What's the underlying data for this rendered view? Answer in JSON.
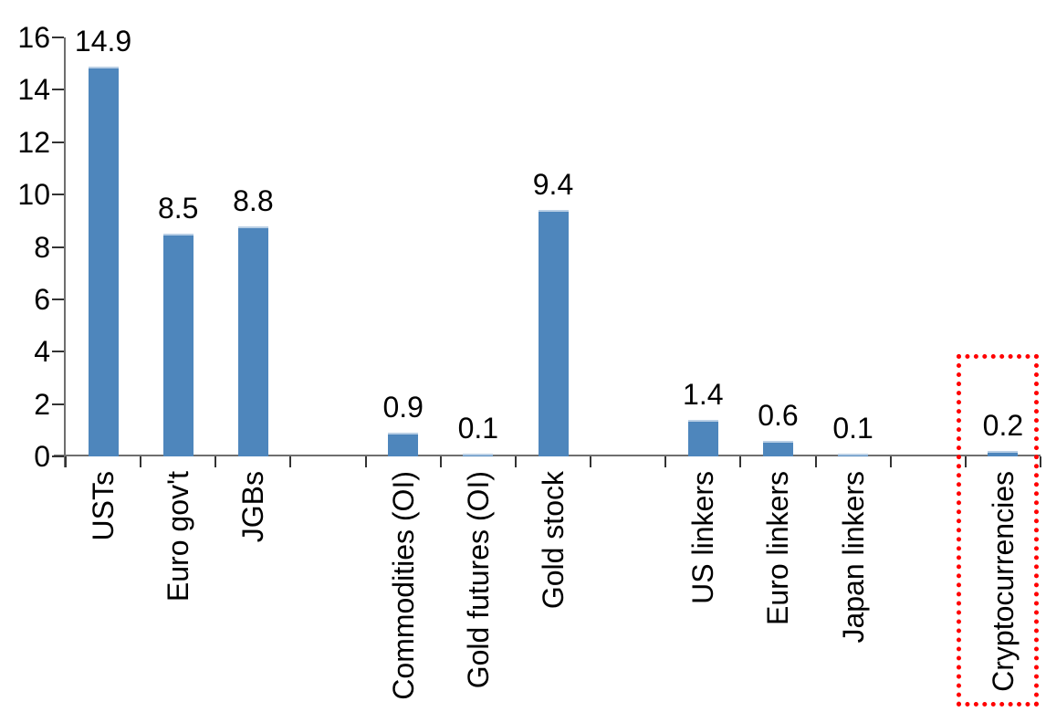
{
  "chart_data": {
    "type": "bar",
    "categories": [
      "USTs",
      "Euro gov't",
      "JGBs",
      "Commodities (OI)",
      "Gold futures (OI)",
      "Gold stock",
      "US linkers",
      "Euro linkers",
      "Japan linkers",
      "Cryptocurrencies"
    ],
    "values": [
      14.9,
      8.5,
      8.8,
      0.9,
      0.1,
      9.4,
      1.4,
      0.6,
      0.1,
      0.2
    ],
    "data_labels": [
      "14.9",
      "8.5",
      "8.8",
      "0.9",
      "0.1",
      "9.4",
      "1.4",
      "0.6",
      "0.1",
      "0.2"
    ],
    "slot_indices": [
      0,
      1,
      2,
      4,
      5,
      6,
      8,
      9,
      10,
      12
    ],
    "num_slots": 13,
    "y_ticks": [
      0,
      2,
      4,
      6,
      8,
      10,
      12,
      14,
      16
    ],
    "y_tick_labels": [
      "0",
      "2",
      "4",
      "6",
      "8",
      "10",
      "12",
      "14",
      "16"
    ],
    "ylim": [
      0,
      16
    ],
    "xlabel": "",
    "ylabel": "",
    "grid": false,
    "legend": "none",
    "bar_color": "#4E86BC",
    "bar_top_highlight_color": "#B9CFE5",
    "axis_color": "#6e6e6e",
    "tick_color": "#333333",
    "text_color": "#000000",
    "highlight_box": {
      "category": "Cryptocurrencies",
      "color": "#FF0000",
      "style": "dotted"
    }
  }
}
